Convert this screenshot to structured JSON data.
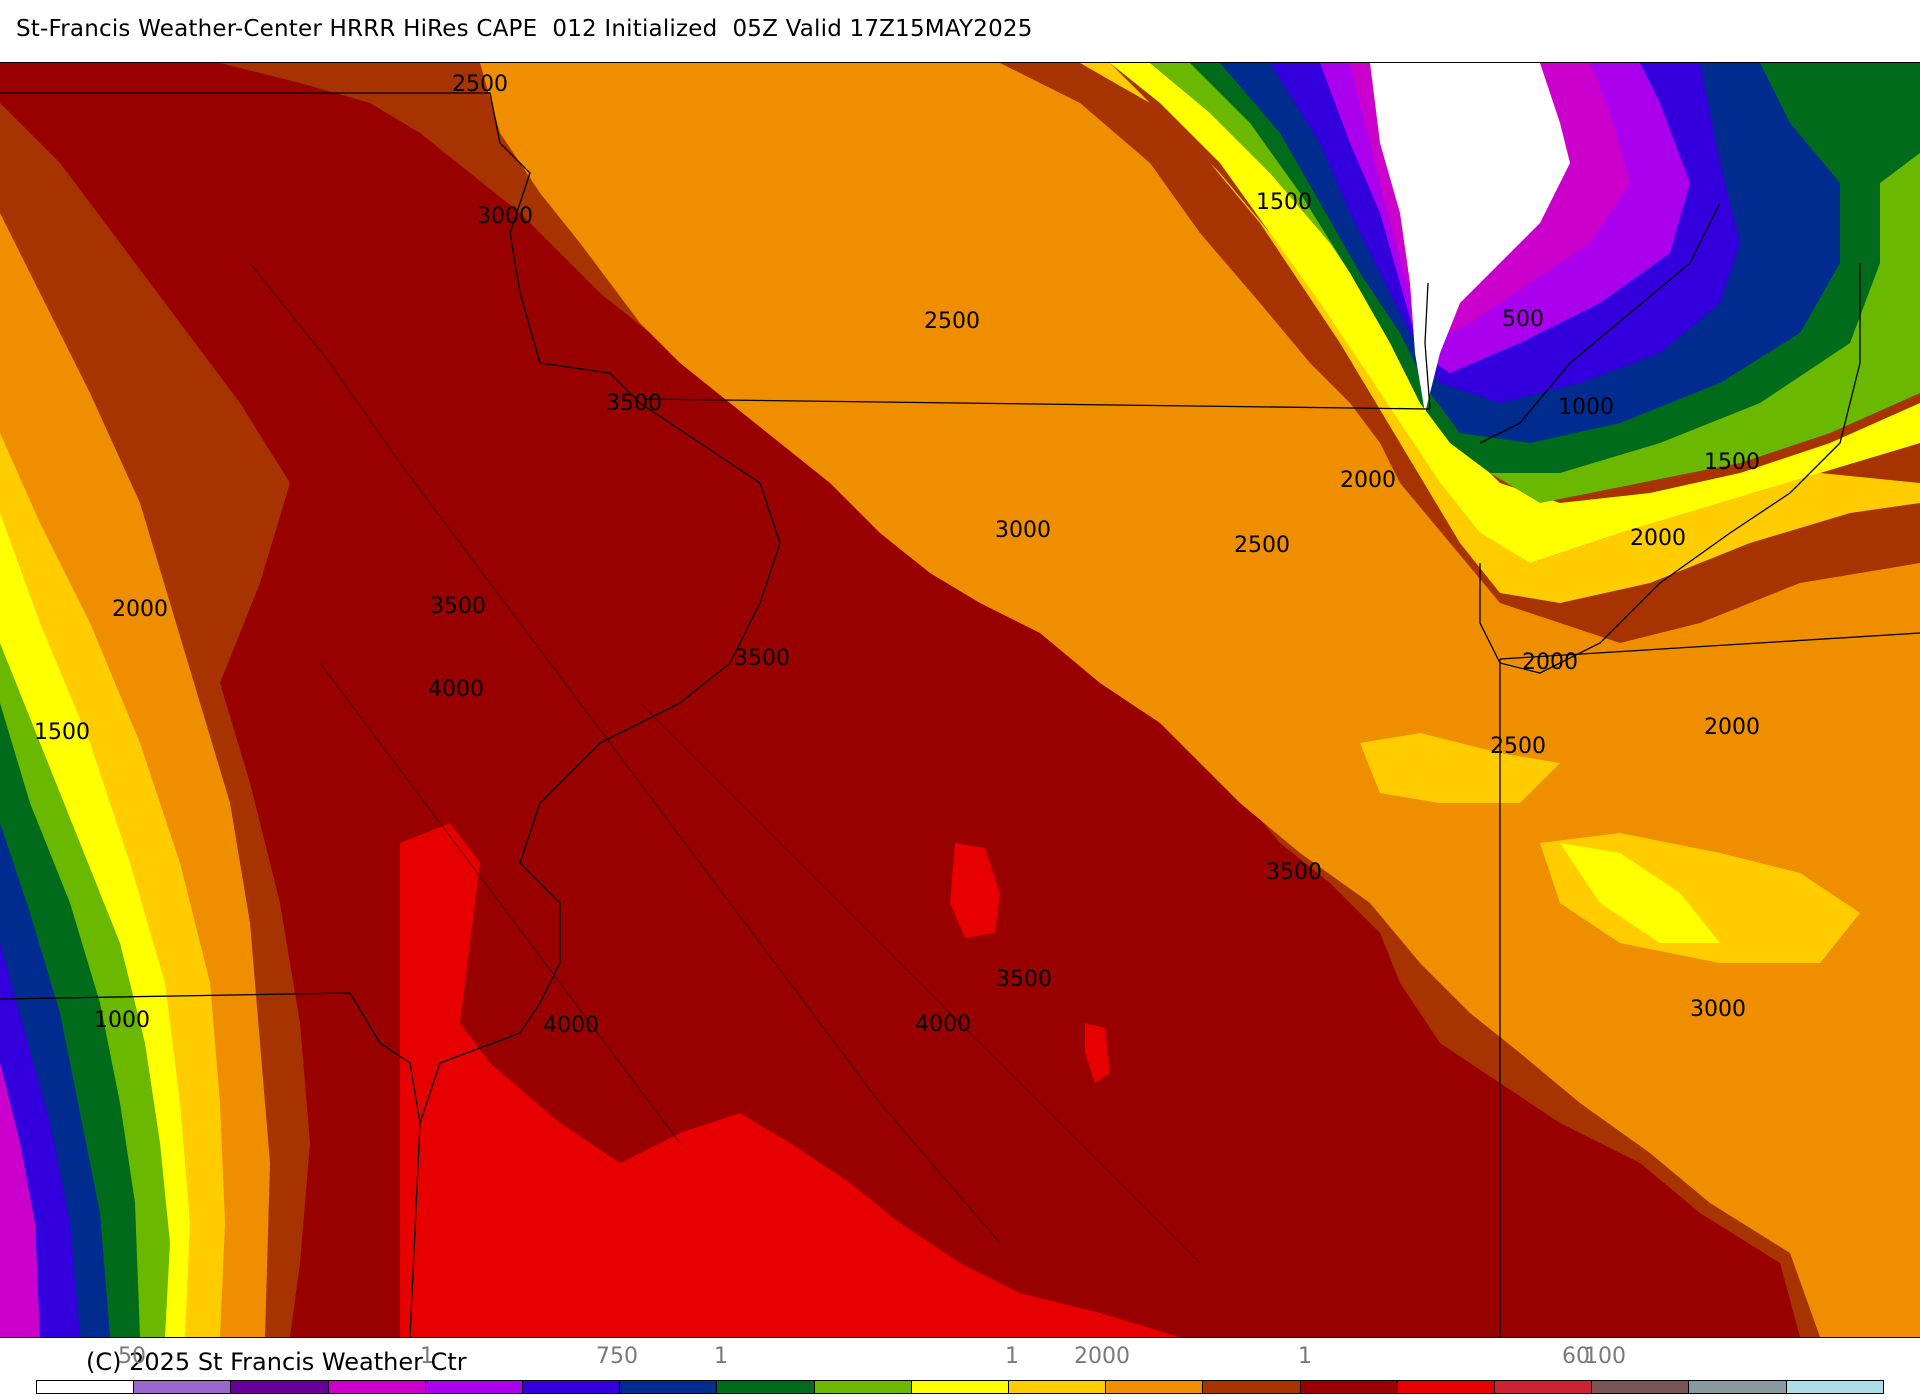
{
  "header": {
    "title": "St-Francis Weather-Center HRRR HiRes CAPE  012 Initialized  05Z Valid 17Z15MAY2025"
  },
  "palette": {
    "white": "#ffffff",
    "lavender": "#9966cc",
    "purple": "#660099",
    "magenta": "#cc00cc",
    "violet": "#aa00ee",
    "blue_violet": "#3300dd",
    "navy": "#002b8f",
    "dark_green": "#006b1a",
    "green": "#6ab800",
    "yellow": "#ffff00",
    "gold": "#ffcc00",
    "orange": "#ef8f00",
    "rust": "#a63300",
    "maroon": "#990000",
    "red": "#e60000",
    "crimson": "#cc2233",
    "mauve": "#7a5555",
    "slate": "#8899a0",
    "light_cyan": "#aadde6"
  },
  "contour_labels": [
    {
      "text": "2500"
    },
    {
      "text": "3000"
    },
    {
      "text": "1500"
    },
    {
      "text": "2500"
    },
    {
      "text": "500"
    },
    {
      "text": "3500"
    },
    {
      "text": "1000"
    },
    {
      "text": "2000"
    },
    {
      "text": "1500"
    },
    {
      "text": "3000"
    },
    {
      "text": "2500"
    },
    {
      "text": "2000"
    },
    {
      "text": "2000"
    },
    {
      "text": "3500"
    },
    {
      "text": "3500"
    },
    {
      "text": "2000"
    },
    {
      "text": "4000"
    },
    {
      "text": "2000"
    },
    {
      "text": "1500"
    },
    {
      "text": "2500"
    },
    {
      "text": "3500"
    },
    {
      "text": "3500"
    },
    {
      "text": "1000"
    },
    {
      "text": "4000"
    },
    {
      "text": "4000"
    },
    {
      "text": "3000"
    }
  ],
  "footer": {
    "copyright": "(C) 2025 St Francis Weather Ctr",
    "colorbar_labels": [
      "50",
      "1",
      "750",
      "1",
      "1",
      "2000",
      "1",
      "60",
      "100"
    ]
  },
  "colorbar": {
    "colors": [
      "#ffffff",
      "#9966cc",
      "#660099",
      "#cc00cc",
      "#aa00ee",
      "#3300dd",
      "#002b8f",
      "#006b1a",
      "#6ab800",
      "#ffff00",
      "#ffcc00",
      "#ef8f00",
      "#a63300",
      "#990000",
      "#e60000",
      "#cc2233",
      "#7a5555",
      "#8899a0",
      "#aadde6"
    ]
  }
}
